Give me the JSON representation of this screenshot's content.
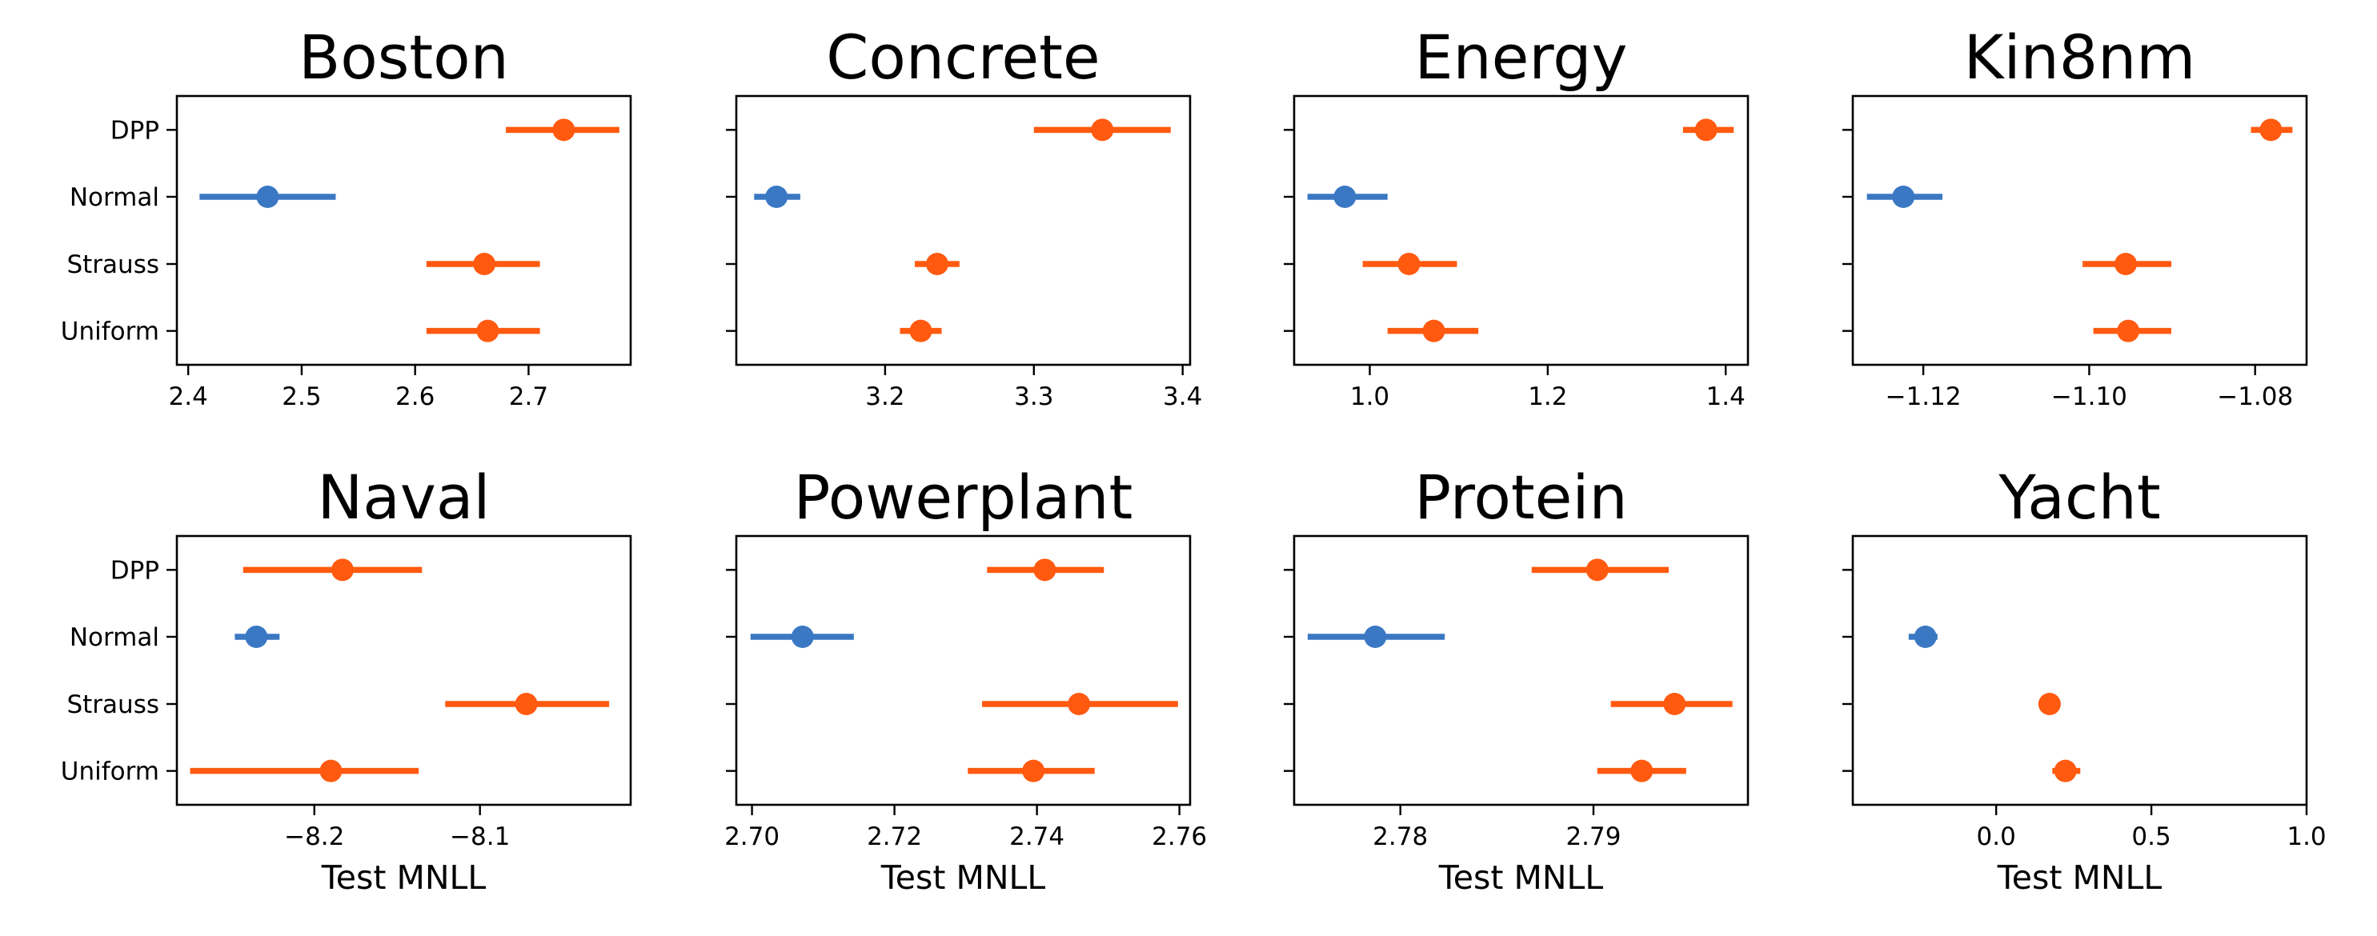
{
  "styles": {
    "highlight_color": "#3a78c4",
    "other_color": "#ff5a10",
    "axis_color": "#000000"
  },
  "chart_data": [
    {
      "type": "errorbar",
      "title": "Boston",
      "categories": [
        "DPP",
        "Normal",
        "Strauss",
        "Uniform"
      ],
      "highlight": "Normal",
      "points": [
        {
          "label": "DPP",
          "value": 2.731,
          "low": 2.68,
          "high": 2.78
        },
        {
          "label": "Normal",
          "value": 2.47,
          "low": 2.41,
          "high": 2.53
        },
        {
          "label": "Strauss",
          "value": 2.661,
          "low": 2.61,
          "high": 2.71
        },
        {
          "label": "Uniform",
          "value": 2.664,
          "low": 2.61,
          "high": 2.71
        }
      ],
      "xlim": [
        2.39,
        2.79
      ],
      "xticks": [
        2.4,
        2.5,
        2.6,
        2.7
      ],
      "xtick_labels": [
        "2.4",
        "2.5",
        "2.6",
        "2.7"
      ],
      "xlabel": "",
      "show_ylabels": true,
      "ytick_labels": [
        "DPP",
        "Normal",
        "Strauss",
        "Uniform"
      ]
    },
    {
      "type": "errorbar",
      "title": "Concrete",
      "categories": [
        "DPP",
        "Normal",
        "Strauss",
        "Uniform"
      ],
      "highlight": "Normal",
      "points": [
        {
          "label": "DPP",
          "value": 3.346,
          "low": 3.3,
          "high": 3.392
        },
        {
          "label": "Normal",
          "value": 3.127,
          "low": 3.112,
          "high": 3.143
        },
        {
          "label": "Strauss",
          "value": 3.235,
          "low": 3.22,
          "high": 3.25
        },
        {
          "label": "Uniform",
          "value": 3.224,
          "low": 3.21,
          "high": 3.238
        }
      ],
      "xlim": [
        3.1,
        3.405
      ],
      "xticks": [
        3.2,
        3.3,
        3.4
      ],
      "xtick_labels": [
        "3.2",
        "3.3",
        "3.4"
      ],
      "xlabel": "",
      "show_ylabels": false,
      "ytick_labels": [
        "",
        "",
        "",
        ""
      ]
    },
    {
      "type": "errorbar",
      "title": "Energy",
      "categories": [
        "DPP",
        "Normal",
        "Strauss",
        "Uniform"
      ],
      "highlight": "Normal",
      "points": [
        {
          "label": "DPP",
          "value": 1.378,
          "low": 1.352,
          "high": 1.409
        },
        {
          "label": "Normal",
          "value": 0.972,
          "low": 0.93,
          "high": 1.02
        },
        {
          "label": "Strauss",
          "value": 1.044,
          "low": 0.992,
          "high": 1.098
        },
        {
          "label": "Uniform",
          "value": 1.072,
          "low": 1.02,
          "high": 1.122
        }
      ],
      "xlim": [
        0.915,
        1.425
      ],
      "xticks": [
        1.0,
        1.2,
        1.4
      ],
      "xtick_labels": [
        "1.0",
        "1.2",
        "1.4"
      ],
      "xlabel": "",
      "show_ylabels": false,
      "ytick_labels": [
        "",
        "",
        "",
        ""
      ]
    },
    {
      "type": "errorbar",
      "title": "Kin8nm",
      "categories": [
        "DPP",
        "Normal",
        "Strauss",
        "Uniform"
      ],
      "highlight": "Normal",
      "points": [
        {
          "label": "DPP",
          "value": -1.0781,
          "low": -1.0805,
          "high": -1.0755
        },
        {
          "label": "Normal",
          "value": -1.1224,
          "low": -1.1268,
          "high": -1.1177
        },
        {
          "label": "Strauss",
          "value": -1.0956,
          "low": -1.1008,
          "high": -1.0901
        },
        {
          "label": "Uniform",
          "value": -1.0953,
          "low": -1.0995,
          "high": -1.0901
        }
      ],
      "xlim": [
        -1.1285,
        -1.0738
      ],
      "xticks": [
        -1.12,
        -1.1,
        -1.08
      ],
      "xtick_labels": [
        "−1.12",
        "−1.10",
        "−1.08"
      ],
      "xlabel": "",
      "show_ylabels": false,
      "ytick_labels": [
        "",
        "",
        "",
        ""
      ]
    },
    {
      "type": "errorbar",
      "title": "Naval",
      "categories": [
        "DPP",
        "Normal",
        "Strauss",
        "Uniform"
      ],
      "highlight": "Normal",
      "points": [
        {
          "label": "DPP",
          "value": -8.183,
          "low": -8.243,
          "high": -8.135
        },
        {
          "label": "Normal",
          "value": -8.235,
          "low": -8.248,
          "high": -8.221
        },
        {
          "label": "Strauss",
          "value": -8.072,
          "low": -8.121,
          "high": -8.022
        },
        {
          "label": "Uniform",
          "value": -8.19,
          "low": -8.275,
          "high": -8.137
        }
      ],
      "xlim": [
        -8.283,
        -8.009
      ],
      "xticks": [
        -8.2,
        -8.1
      ],
      "xtick_labels": [
        "−8.2",
        "−8.1"
      ],
      "xlabel": "Test MNLL",
      "show_ylabels": true,
      "ytick_labels": [
        "DPP",
        "Normal",
        "Strauss",
        "Uniform"
      ]
    },
    {
      "type": "errorbar",
      "title": "Powerplant",
      "categories": [
        "DPP",
        "Normal",
        "Strauss",
        "Uniform"
      ],
      "highlight": "Normal",
      "points": [
        {
          "label": "DPP",
          "value": 2.7411,
          "low": 2.733,
          "high": 2.7494
        },
        {
          "label": "Normal",
          "value": 2.7071,
          "low": 2.6998,
          "high": 2.7143
        },
        {
          "label": "Strauss",
          "value": 2.7459,
          "low": 2.7323,
          "high": 2.7598
        },
        {
          "label": "Uniform",
          "value": 2.7395,
          "low": 2.7303,
          "high": 2.7481
        }
      ],
      "xlim": [
        2.6978,
        2.7615
      ],
      "xticks": [
        2.7,
        2.72,
        2.74,
        2.76
      ],
      "xtick_labels": [
        "2.70",
        "2.72",
        "2.74",
        "2.76"
      ],
      "xlabel": "Test MNLL",
      "show_ylabels": false,
      "ytick_labels": [
        "",
        "",
        "",
        ""
      ]
    },
    {
      "type": "errorbar",
      "title": "Protein",
      "categories": [
        "DPP",
        "Normal",
        "Strauss",
        "Uniform"
      ],
      "highlight": "Normal",
      "points": [
        {
          "label": "DPP",
          "value": 2.7902,
          "low": 2.7868,
          "high": 2.7939
        },
        {
          "label": "Normal",
          "value": 2.7787,
          "low": 2.7752,
          "high": 2.7823
        },
        {
          "label": "Strauss",
          "value": 2.7942,
          "low": 2.7909,
          "high": 2.7972
        },
        {
          "label": "Uniform",
          "value": 2.7925,
          "low": 2.7902,
          "high": 2.7948
        }
      ],
      "xlim": [
        2.7745,
        2.798
      ],
      "xticks": [
        2.78,
        2.79
      ],
      "xtick_labels": [
        "2.78",
        "2.79"
      ],
      "xlabel": "Test MNLL",
      "show_ylabels": false,
      "ytick_labels": [
        "",
        "",
        "",
        ""
      ]
    },
    {
      "type": "errorbar",
      "title": "Yacht",
      "categories": [
        "DPP",
        "Normal",
        "Strauss",
        "Uniform"
      ],
      "highlight": "Normal",
      "points": [
        {
          "label": "DPP",
          "value": null,
          "low": null,
          "high": null
        },
        {
          "label": "Normal",
          "value": -0.228,
          "low": -0.282,
          "high": -0.189
        },
        {
          "label": "Strauss",
          "value": 0.172,
          "low": 0.15,
          "high": 0.199
        },
        {
          "label": "Uniform",
          "value": 0.223,
          "low": 0.181,
          "high": 0.271
        }
      ],
      "xlim": [
        -0.462,
        1.0
      ],
      "xticks": [
        0.0,
        0.5,
        1.0
      ],
      "xtick_labels": [
        "0.0",
        "0.5",
        "1.0"
      ],
      "xlabel": "Test MNLL",
      "show_ylabels": false,
      "ytick_labels": [
        "",
        "",
        "",
        ""
      ]
    }
  ]
}
